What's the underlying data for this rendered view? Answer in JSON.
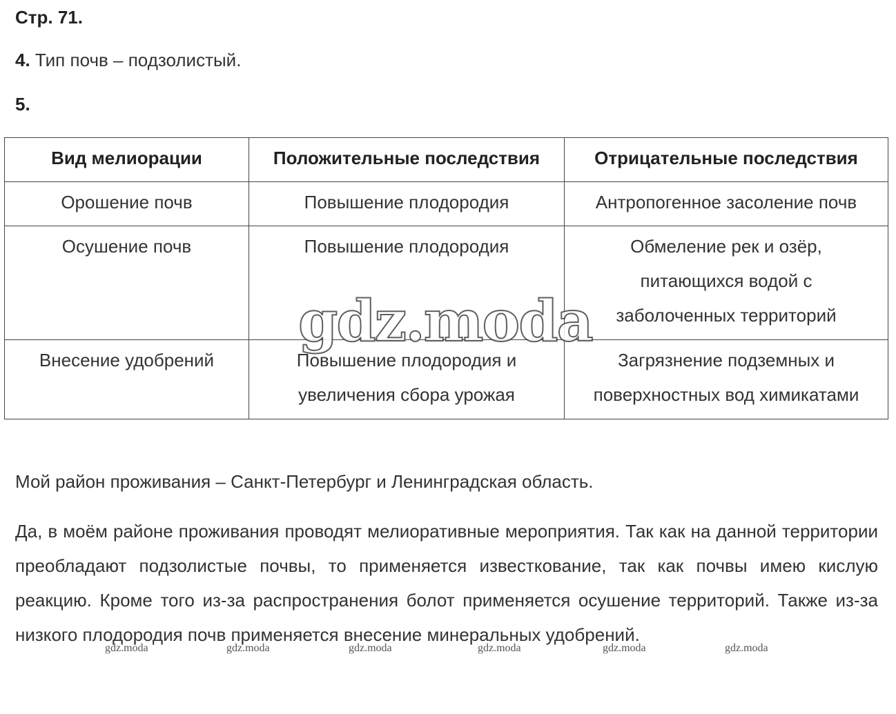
{
  "page_label": "Стр. 71.",
  "task4": {
    "num": "4.",
    "text": "Тип почв – подзолистый."
  },
  "task5": {
    "num": "5."
  },
  "table": {
    "headers": [
      "Вид мелиорации",
      "Положительные последствия",
      "Отрицательные последствия"
    ],
    "rows": [
      [
        "Орошение почв",
        "Повышение плодородия",
        "Антропогенное засоление почв"
      ],
      [
        "Осушение почв",
        "Повышение плодородия",
        "Обмеление рек и озёр, питающихся водой с заболоченных территорий"
      ],
      [
        "Внесение удобрений",
        "Повышение плодородия и увеличения сбора урожая",
        "Загрязнение подземных и поверхностных вод химикатами"
      ]
    ]
  },
  "region": "Мой район проживания – Санкт-Петербург и Ленинградская область.",
  "paragraph": "Да, в моём районе проживания проводят мелиоративные мероприятия. Так как на данной территории преобладают подзолистые почвы, то применяется известкование, так как почвы имею кислую реакцию. Кроме того из-за распространения болот применяется осушение территорий. Также из-за низкого плодородия почв применяется внесение минеральных удобрений.",
  "watermark": "gdz.moda"
}
